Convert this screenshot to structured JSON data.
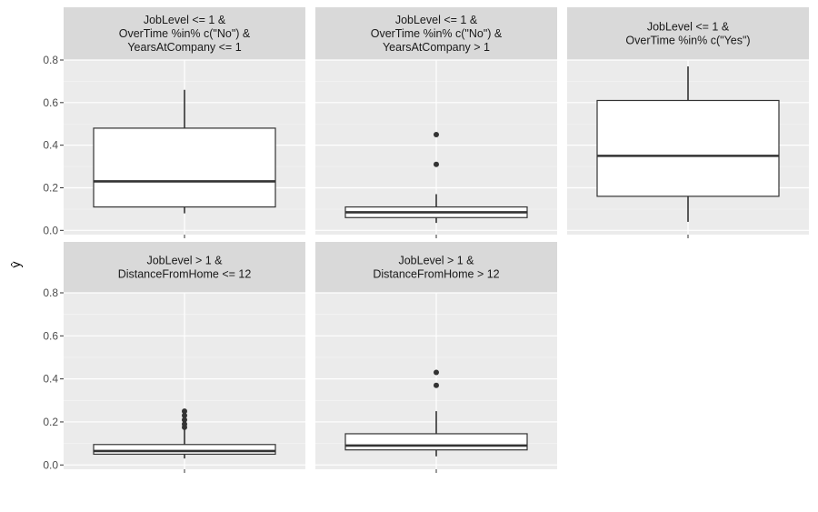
{
  "chart_data": {
    "type": "boxplot",
    "ylabel": "ŷ",
    "xlabel": "",
    "ylim": [
      -0.02,
      0.8
    ],
    "y_ticks": [
      0.0,
      0.2,
      0.4,
      0.6,
      0.8
    ],
    "y_tick_labels": [
      "0.0",
      "0.2",
      "0.4",
      "0.6",
      "0.8"
    ],
    "grid": true,
    "panels": [
      {
        "strip": [
          "JobLevel <= 1 &",
          "OverTime %in% c(\"No\") &",
          "YearsAtCompany <= 1"
        ],
        "q1": 0.11,
        "median": 0.23,
        "q3": 0.48,
        "whisker_low": 0.08,
        "whisker_high": 0.66,
        "outliers": []
      },
      {
        "strip": [
          "JobLevel <= 1 &",
          "OverTime %in% c(\"No\") &",
          "YearsAtCompany > 1"
        ],
        "q1": 0.06,
        "median": 0.085,
        "q3": 0.11,
        "whisker_low": 0.035,
        "whisker_high": 0.17,
        "outliers": [
          0.31,
          0.45
        ]
      },
      {
        "strip": [
          "JobLevel <= 1 &",
          "OverTime %in% c(\"Yes\")"
        ],
        "q1": 0.16,
        "median": 0.35,
        "q3": 0.61,
        "whisker_low": 0.04,
        "whisker_high": 0.77,
        "outliers": []
      },
      {
        "strip": [
          "JobLevel > 1 &",
          "DistanceFromHome <= 12"
        ],
        "q1": 0.05,
        "median": 0.065,
        "q3": 0.095,
        "whisker_low": 0.03,
        "whisker_high": 0.17,
        "outliers": [
          0.175,
          0.19,
          0.21,
          0.23,
          0.25
        ]
      },
      {
        "strip": [
          "JobLevel > 1 &",
          "DistanceFromHome > 12"
        ],
        "q1": 0.07,
        "median": 0.09,
        "q3": 0.145,
        "whisker_low": 0.04,
        "whisker_high": 0.25,
        "outliers": [
          0.37,
          0.43
        ]
      }
    ]
  }
}
